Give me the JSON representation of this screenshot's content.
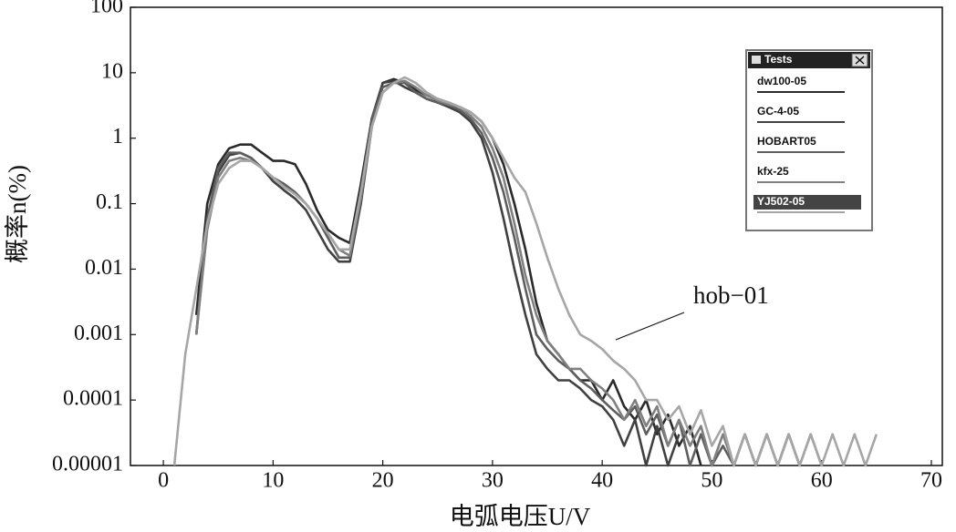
{
  "chart_data": {
    "type": "line",
    "xlabel": "电弧电压U/V",
    "ylabel": "概率n(%)",
    "annotation": "hob−01",
    "legend_title": "Tests",
    "legend_selected": 4,
    "log_y": true,
    "xlim": [
      -3,
      71
    ],
    "ylim": [
      1e-05,
      100
    ],
    "xticks": [
      0,
      10,
      20,
      30,
      40,
      50,
      60,
      70
    ],
    "yticks": [
      100,
      10,
      1,
      0.1,
      0.01,
      0.001,
      0.0001,
      {
        "value": 1e-05,
        "label": "0.00001"
      }
    ],
    "x": [
      1,
      2,
      3,
      4,
      5,
      6,
      7,
      8,
      9,
      10,
      11,
      12,
      13,
      14,
      15,
      16,
      17,
      18,
      19,
      20,
      21,
      22,
      23,
      24,
      25,
      26,
      27,
      28,
      29,
      30,
      31,
      32,
      33,
      34,
      35,
      36,
      37,
      38,
      39,
      40,
      41,
      42,
      43,
      44,
      45,
      46,
      47,
      48,
      49,
      50,
      51,
      52,
      53,
      54,
      55,
      56,
      57,
      58,
      59,
      60,
      61,
      62,
      63,
      64,
      65
    ],
    "series": [
      {
        "name": "dw100-05",
        "color": "#2a2a2a",
        "values": [
          null,
          null,
          0.002,
          0.1,
          0.4,
          0.7,
          0.8,
          0.8,
          0.6,
          0.45,
          0.45,
          0.4,
          0.2,
          0.08,
          0.04,
          0.03,
          0.025,
          0.2,
          2,
          7,
          8,
          7,
          5.5,
          4.5,
          4,
          3.5,
          3,
          2.5,
          1.8,
          1,
          0.4,
          0.1,
          0.02,
          0.003,
          0.0008,
          0.0005,
          0.0003,
          0.0002,
          0.0002,
          0.0001,
          0.0002,
          8e-05,
          5e-05,
          0.0001,
          3e-05,
          6e-05,
          2e-05,
          4e-05,
          1e-05,
          null,
          null,
          null,
          null,
          null,
          null,
          null,
          null,
          null,
          null,
          null,
          null,
          null,
          null,
          null,
          null
        ]
      },
      {
        "name": "GC-4-05",
        "color": "#404040",
        "values": [
          null,
          null,
          0.001,
          0.05,
          0.3,
          0.55,
          0.6,
          0.5,
          0.35,
          0.22,
          0.16,
          0.12,
          0.08,
          0.04,
          0.02,
          0.013,
          0.013,
          0.1,
          1.5,
          7,
          7.5,
          6,
          5,
          4,
          3.5,
          3,
          2.5,
          1.8,
          1,
          0.3,
          0.06,
          0.01,
          0.002,
          0.0005,
          0.0003,
          0.0002,
          0.0002,
          0.00015,
          0.0001,
          8e-05,
          5e-05,
          2e-05,
          5e-05,
          1e-05,
          4e-05,
          1e-05,
          3e-05,
          null,
          null,
          null,
          null,
          null,
          null,
          null,
          null,
          null,
          null,
          null,
          null,
          null,
          null,
          null,
          null,
          null,
          null
        ]
      },
      {
        "name": "HOBART05",
        "color": "#5e5e5e",
        "values": [
          null,
          null,
          0.001,
          0.06,
          0.35,
          0.6,
          0.6,
          0.5,
          0.35,
          0.25,
          0.2,
          0.15,
          0.1,
          0.06,
          0.03,
          0.015,
          0.015,
          0.15,
          2,
          6,
          7,
          7,
          5,
          4,
          3.5,
          3.2,
          2.7,
          2,
          1.2,
          0.5,
          0.15,
          0.03,
          0.005,
          0.001,
          0.0006,
          0.0004,
          0.0003,
          0.0002,
          0.00015,
          0.0001,
          7e-05,
          5e-05,
          8e-05,
          3e-05,
          6e-05,
          2e-05,
          5e-05,
          1e-05,
          3e-05,
          1e-05,
          2e-05,
          1e-05,
          3e-05,
          1e-05,
          3e-05,
          1e-05,
          3e-05,
          1e-05,
          null,
          null,
          null,
          null,
          null,
          null,
          null
        ]
      },
      {
        "name": "kfx-25",
        "color": "#808080",
        "values": [
          null,
          null,
          0.001,
          0.04,
          0.25,
          0.45,
          0.5,
          0.45,
          0.35,
          0.25,
          0.18,
          0.14,
          0.1,
          0.06,
          0.035,
          0.02,
          0.016,
          0.12,
          1.5,
          5,
          7,
          7.5,
          6,
          4.5,
          3.8,
          3.3,
          3,
          2.2,
          1.5,
          0.7,
          0.25,
          0.05,
          0.008,
          0.002,
          0.0008,
          0.0005,
          0.0003,
          0.0003,
          0.0002,
          0.00015,
          0.0001,
          5e-05,
          0.0001,
          4e-05,
          8e-05,
          2e-05,
          5e-05,
          2e-05,
          4e-05,
          1e-05,
          3e-05,
          1e-05,
          3e-05,
          1e-05,
          3e-05,
          1e-05,
          3e-05,
          1e-05,
          3e-05,
          1e-05,
          null,
          null,
          null,
          null,
          null
        ]
      },
      {
        "name": "YJ502-05",
        "color": "#a6a6a6",
        "values": [
          1e-05,
          0.0005,
          0.005,
          0.05,
          0.2,
          0.35,
          0.45,
          0.45,
          0.35,
          0.25,
          0.18,
          0.14,
          0.1,
          0.06,
          0.035,
          0.02,
          0.02,
          0.15,
          1.5,
          5,
          7,
          8.5,
          7,
          5,
          4,
          3.5,
          3,
          2.5,
          1.8,
          1,
          0.5,
          0.25,
          0.15,
          0.05,
          0.015,
          0.005,
          0.002,
          0.001,
          0.0008,
          0.0006,
          0.0004,
          0.0003,
          0.0002,
          0.0001,
          0.0001,
          5e-05,
          8e-05,
          3e-05,
          7e-05,
          2e-05,
          4e-05,
          1e-05,
          3e-05,
          1e-05,
          3e-05,
          1e-05,
          3e-05,
          1e-05,
          3e-05,
          1e-05,
          3e-05,
          1e-05,
          3e-05,
          1e-05,
          3e-05
        ]
      }
    ]
  }
}
